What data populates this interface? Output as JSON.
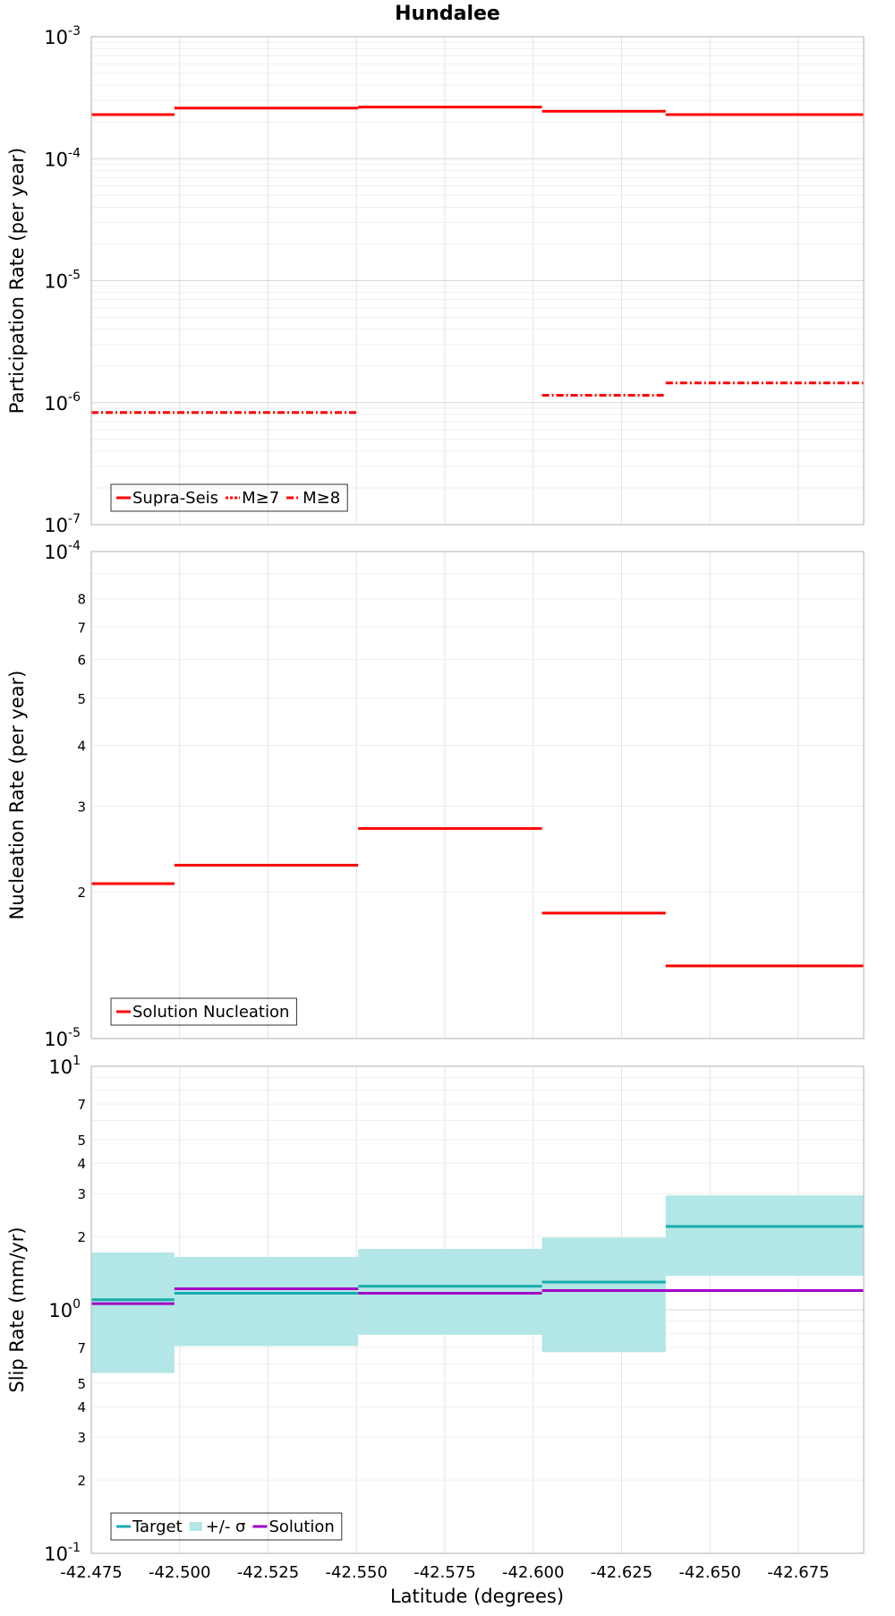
{
  "title": "Hundalee",
  "x_axis": {
    "label": "Latitude (degrees)",
    "ticks": [
      "-42.475",
      "-42.500",
      "-42.525",
      "-42.550",
      "-42.575",
      "-42.600",
      "-42.625",
      "-42.650",
      "-42.675"
    ]
  },
  "chart_data": [
    {
      "type": "line",
      "step": true,
      "title": "Hundalee",
      "xlabel": "Latitude (degrees)",
      "ylabel": "Participation Rate (per year)",
      "yscale": "log",
      "ylim": [
        1e-07,
        0.001
      ],
      "xlim": [
        -42.475,
        -42.6935
      ],
      "grid": true,
      "legend": "bottom-left",
      "series": [
        {
          "name": "Supra-Seis",
          "style": "solid",
          "color": "#ff0000",
          "segments": [
            {
              "x0": -42.475,
              "x1": -42.4985,
              "y": 0.00023
            },
            {
              "x0": -42.4985,
              "x1": -42.5505,
              "y": 0.00026
            },
            {
              "x0": -42.5505,
              "x1": -42.6025,
              "y": 0.000265
            },
            {
              "x0": -42.6025,
              "x1": -42.6375,
              "y": 0.000245
            },
            {
              "x0": -42.6375,
              "x1": -42.6935,
              "y": 0.00023
            }
          ]
        },
        {
          "name": "M≥7",
          "style": "dotted",
          "color": "#ff0000",
          "segments": [
            {
              "x0": -42.475,
              "x1": -42.4985,
              "y": 0.00023
            },
            {
              "x0": -42.6375,
              "x1": -42.6935,
              "y": 0.00023
            }
          ]
        },
        {
          "name": "M≥8",
          "style": "dashdot",
          "color": "#ff0000",
          "segments": [
            {
              "x0": -42.475,
              "x1": -42.5505,
              "y": 8.3e-07
            },
            {
              "x0": -42.6025,
              "x1": -42.6375,
              "y": 1.15e-06
            },
            {
              "x0": -42.6375,
              "x1": -42.6935,
              "y": 1.45e-06
            }
          ]
        }
      ],
      "y_ticks": [
        {
          "base": "10",
          "exp": "-7",
          "value": 1e-07
        },
        {
          "base": "10",
          "exp": "-6",
          "value": 1e-06
        },
        {
          "base": "10",
          "exp": "-5",
          "value": 1e-05
        },
        {
          "base": "10",
          "exp": "-4",
          "value": 0.0001
        },
        {
          "base": "10",
          "exp": "-3",
          "value": 0.001
        }
      ]
    },
    {
      "type": "line",
      "step": true,
      "xlabel": "Latitude (degrees)",
      "ylabel": "Nucleation Rate (per year)",
      "yscale": "log",
      "ylim": [
        1e-05,
        0.0001
      ],
      "xlim": [
        -42.475,
        -42.6935
      ],
      "grid": true,
      "legend": "bottom-left",
      "series": [
        {
          "name": "Solution Nucleation",
          "style": "solid",
          "color": "#ff0000",
          "segments": [
            {
              "x0": -42.475,
              "x1": -42.4985,
              "y": 2.08e-05
            },
            {
              "x0": -42.4985,
              "x1": -42.5505,
              "y": 2.27e-05
            },
            {
              "x0": -42.5505,
              "x1": -42.6025,
              "y": 2.7e-05
            },
            {
              "x0": -42.6025,
              "x1": -42.6375,
              "y": 1.81e-05
            },
            {
              "x0": -42.6375,
              "x1": -42.6935,
              "y": 1.41e-05
            }
          ]
        }
      ],
      "y_ticks": [
        {
          "base": "10",
          "exp": "-5",
          "value": 1e-05
        },
        {
          "base": "10",
          "exp": "-4",
          "value": 0.0001
        }
      ],
      "y_minor_ticks": [
        {
          "label": "2",
          "value": 2e-05
        },
        {
          "label": "3",
          "value": 3e-05
        },
        {
          "label": "4",
          "value": 4e-05
        },
        {
          "label": "5",
          "value": 5e-05
        },
        {
          "label": "6",
          "value": 6e-05
        },
        {
          "label": "7",
          "value": 7e-05
        },
        {
          "label": "8",
          "value": 8e-05
        }
      ]
    },
    {
      "type": "line",
      "step": true,
      "xlabel": "Latitude (degrees)",
      "ylabel": "Slip Rate (mm/yr)",
      "yscale": "log",
      "ylim": [
        0.1,
        10
      ],
      "xlim": [
        -42.475,
        -42.6935
      ],
      "grid": true,
      "legend": "bottom-left",
      "bands": [
        {
          "name": "+/- σ",
          "color": "#b3e6e6",
          "segments": [
            {
              "x0": -42.475,
              "x1": -42.4985,
              "low": 0.55,
              "high": 1.72
            },
            {
              "x0": -42.4985,
              "x1": -42.5505,
              "low": 0.71,
              "high": 1.65
            },
            {
              "x0": -42.5505,
              "x1": -42.6025,
              "low": 0.79,
              "high": 1.78
            },
            {
              "x0": -42.6025,
              "x1": -42.6375,
              "low": 0.67,
              "high": 1.98
            },
            {
              "x0": -42.6375,
              "x1": -42.6935,
              "low": 1.38,
              "high": 2.95
            }
          ]
        }
      ],
      "series": [
        {
          "name": "Target",
          "style": "solid",
          "color": "#1aadad",
          "segments": [
            {
              "x0": -42.475,
              "x1": -42.4985,
              "y": 1.1
            },
            {
              "x0": -42.4985,
              "x1": -42.5505,
              "y": 1.17
            },
            {
              "x0": -42.5505,
              "x1": -42.6025,
              "y": 1.25
            },
            {
              "x0": -42.6025,
              "x1": -42.6375,
              "y": 1.3
            },
            {
              "x0": -42.6375,
              "x1": -42.6935,
              "y": 2.2
            }
          ]
        },
        {
          "name": "Solution",
          "style": "solid",
          "color": "#a000c8",
          "segments": [
            {
              "x0": -42.475,
              "x1": -42.4985,
              "y": 1.06
            },
            {
              "x0": -42.4985,
              "x1": -42.5505,
              "y": 1.22
            },
            {
              "x0": -42.5505,
              "x1": -42.6025,
              "y": 1.17
            },
            {
              "x0": -42.6025,
              "x1": -42.6375,
              "y": 1.2
            },
            {
              "x0": -42.6375,
              "x1": -42.6935,
              "y": 1.2
            }
          ]
        }
      ],
      "y_ticks": [
        {
          "base": "10",
          "exp": "-1",
          "value": 0.1
        },
        {
          "base": "10",
          "exp": "0",
          "value": 1
        },
        {
          "base": "10",
          "exp": "1",
          "value": 10
        }
      ],
      "y_minor_ticks": [
        {
          "label": "2",
          "value": 0.2
        },
        {
          "label": "3",
          "value": 0.3
        },
        {
          "label": "4",
          "value": 0.4
        },
        {
          "label": "5",
          "value": 0.5
        },
        {
          "label": "7",
          "value": 0.7
        },
        {
          "label": "2",
          "value": 2
        },
        {
          "label": "3",
          "value": 3
        },
        {
          "label": "4",
          "value": 4
        },
        {
          "label": "5",
          "value": 5
        },
        {
          "label": "7",
          "value": 7
        }
      ]
    }
  ]
}
